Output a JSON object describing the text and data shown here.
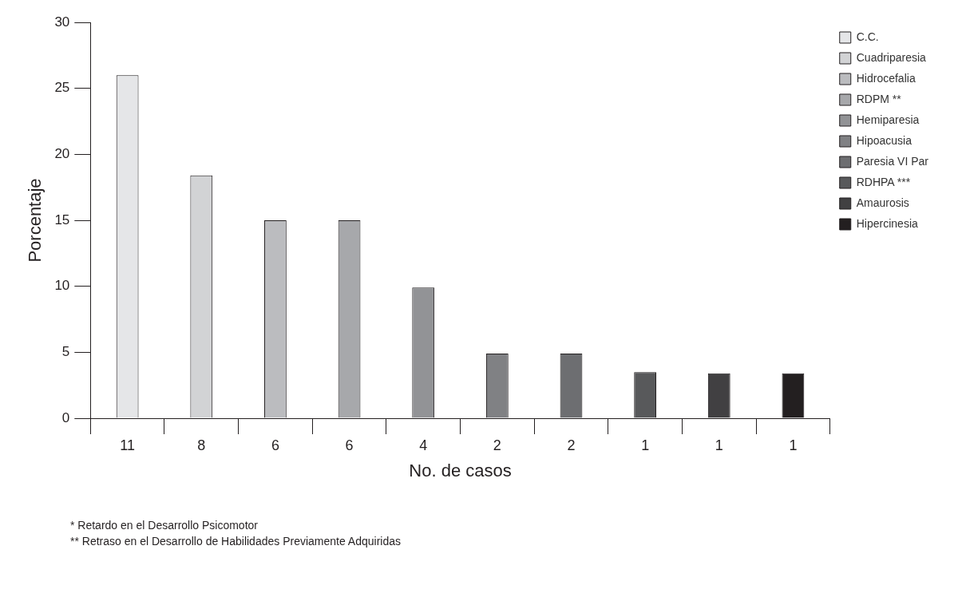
{
  "chart_data": {
    "type": "bar",
    "xlabel": "No. de casos",
    "ylabel": "Porcentaje",
    "categories": [
      "11",
      "8",
      "6",
      "6",
      "4",
      "2",
      "2",
      "1",
      "1",
      "1"
    ],
    "series": [
      {
        "name": "C.C.",
        "color": "#e5e6e8",
        "values": [
          26,
          null,
          null,
          null,
          null,
          null,
          null,
          null,
          null,
          null
        ]
      },
      {
        "name": "Cuadriparesia",
        "color": "#d2d3d5",
        "values": [
          null,
          18.4,
          null,
          null,
          null,
          null,
          null,
          null,
          null,
          null
        ]
      },
      {
        "name": "Hidrocefalia",
        "color": "#bbbcbf",
        "values": [
          null,
          null,
          15,
          null,
          null,
          null,
          null,
          null,
          null,
          null
        ]
      },
      {
        "name": "RDPM **",
        "color": "#a7a8ab",
        "values": [
          null,
          null,
          null,
          15,
          null,
          null,
          null,
          null,
          null,
          null
        ]
      },
      {
        "name": "Hemiparesia",
        "color": "#929396",
        "values": [
          null,
          null,
          null,
          null,
          9.9,
          null,
          null,
          null,
          null,
          null
        ]
      },
      {
        "name": "Hipoacusia",
        "color": "#808184",
        "values": [
          null,
          null,
          null,
          null,
          null,
          4.9,
          null,
          null,
          null,
          null
        ]
      },
      {
        "name": "Paresia VI Par",
        "color": "#6d6e71",
        "values": [
          null,
          null,
          null,
          null,
          null,
          null,
          4.9,
          null,
          null,
          null
        ]
      },
      {
        "name": "RDHPA ***",
        "color": "#58595b",
        "values": [
          null,
          null,
          null,
          null,
          null,
          null,
          null,
          3.5,
          null,
          null
        ]
      },
      {
        "name": "Amaurosis",
        "color": "#414042",
        "values": [
          null,
          null,
          null,
          null,
          null,
          null,
          null,
          null,
          3.4,
          null
        ]
      },
      {
        "name": "Hipercinesia",
        "color": "#231f20",
        "values": [
          null,
          null,
          null,
          null,
          null,
          null,
          null,
          null,
          null,
          3.4
        ]
      }
    ],
    "ylim": [
      0,
      30
    ],
    "yticks": [
      0,
      5,
      10,
      15,
      20,
      25,
      30
    ],
    "grid": false,
    "legend": "top right",
    "annotations": [
      "* Retardo en el Desarrollo Psicomotor",
      "** Retraso en el Desarrollo de Habilidades Previamente Adquiridas"
    ]
  }
}
